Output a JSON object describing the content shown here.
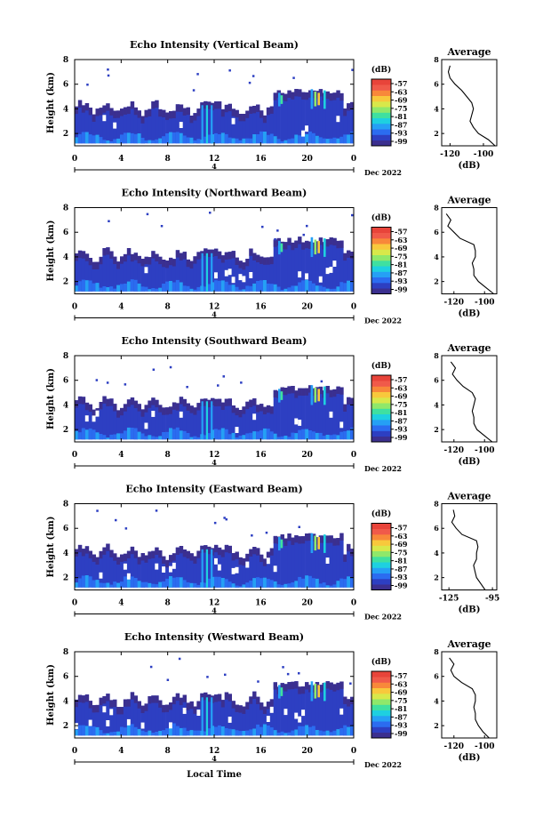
{
  "figure": {
    "xlabel": "Local Time",
    "date_note": "Dec 2022",
    "day_label": "4"
  },
  "colorbar": {
    "unit_label": "(dB)",
    "ticks": [
      "-57",
      "-63",
      "-69",
      "-75",
      "-81",
      "-87",
      "-93",
      "-99"
    ],
    "colors": [
      "#3b2f8f",
      "#2d3fc2",
      "#2b6cf0",
      "#25a0f5",
      "#1ed0e0",
      "#3fe0a0",
      "#8fe86a",
      "#d8e84a",
      "#f8c83c",
      "#f8883a",
      "#f05a4a",
      "#e8443a"
    ]
  },
  "chart_data": [
    {
      "type": "heatmap",
      "title": "Echo Intensity (Vertical Beam)",
      "xlabel": "",
      "ylabel": "Height (km)",
      "xlim": [
        0,
        24
      ],
      "ylim": [
        1,
        8
      ],
      "x_ticks": [
        "0",
        "4",
        "8",
        "12",
        "16",
        "20",
        "0"
      ],
      "y_ticks": [
        "2",
        "4",
        "6",
        "8"
      ],
      "profile": {
        "title": "Average",
        "xlabel": "(dB)",
        "xlim": [
          -125,
          -92
        ],
        "x_ticks": [
          "-120",
          "-100"
        ],
        "heights": [
          1.0,
          1.5,
          2.0,
          2.5,
          3.0,
          3.5,
          4.0,
          4.5,
          5.0,
          5.5,
          6.0,
          6.5,
          7.0,
          7.5
        ],
        "values": [
          -93,
          -97,
          -103,
          -106,
          -108,
          -107,
          -106,
          -107,
          -110,
          -113,
          -117,
          -120,
          -121,
          -120
        ]
      }
    },
    {
      "type": "heatmap",
      "title": "Echo Intensity (Northward Beam)",
      "xlabel": "",
      "ylabel": "Height (km)",
      "xlim": [
        0,
        24
      ],
      "ylim": [
        1,
        8
      ],
      "x_ticks": [
        "0",
        "4",
        "8",
        "12",
        "16",
        "20",
        "0"
      ],
      "y_ticks": [
        "2",
        "4",
        "6",
        "8"
      ],
      "profile": {
        "title": "Average",
        "xlabel": "(dB)",
        "xlim": [
          -128,
          -92
        ],
        "x_ticks": [
          "-120",
          "-100"
        ],
        "heights": [
          1.0,
          1.5,
          2.0,
          2.5,
          3.0,
          3.5,
          4.0,
          4.5,
          5.0,
          5.5,
          6.0,
          6.5,
          7.0,
          7.5
        ],
        "values": [
          -94,
          -99,
          -104,
          -107,
          -107,
          -108,
          -106,
          -106,
          -107,
          -116,
          -120,
          -124,
          -122,
          -125
        ]
      }
    },
    {
      "type": "heatmap",
      "title": "Echo Intensity (Southward Beam)",
      "xlabel": "",
      "ylabel": "Height (km)",
      "xlim": [
        0,
        24
      ],
      "ylim": [
        1,
        8
      ],
      "x_ticks": [
        "0",
        "4",
        "8",
        "12",
        "16",
        "20",
        "0"
      ],
      "y_ticks": [
        "2",
        "4",
        "6",
        "8"
      ],
      "profile": {
        "title": "Average",
        "xlabel": "(dB)",
        "xlim": [
          -128,
          -92
        ],
        "x_ticks": [
          "-120",
          "-100"
        ],
        "heights": [
          1.0,
          1.5,
          2.0,
          2.5,
          3.0,
          3.5,
          4.0,
          4.5,
          5.0,
          5.5,
          6.0,
          6.5,
          7.0,
          7.5
        ],
        "values": [
          -95,
          -100,
          -105,
          -107,
          -107,
          -108,
          -107,
          -106,
          -108,
          -114,
          -118,
          -121,
          -119,
          -122
        ]
      }
    },
    {
      "type": "heatmap",
      "title": "Echo Intensity (Eastward Beam)",
      "xlabel": "",
      "ylabel": "Height (km)",
      "xlim": [
        0,
        24
      ],
      "ylim": [
        1,
        8
      ],
      "x_ticks": [
        "0",
        "4",
        "8",
        "12",
        "16",
        "20",
        "0"
      ],
      "y_ticks": [
        "2",
        "4",
        "6",
        "8"
      ],
      "profile": {
        "title": "Average",
        "xlabel": "(dB)",
        "xlim": [
          -130,
          -92
        ],
        "x_ticks": [
          "-125",
          "-95"
        ],
        "heights": [
          1.0,
          1.5,
          2.0,
          2.5,
          3.0,
          3.5,
          4.0,
          4.5,
          5.0,
          5.5,
          6.0,
          6.5,
          7.0,
          7.5
        ],
        "values": [
          -100,
          -103,
          -106,
          -107,
          -108,
          -106,
          -106,
          -105,
          -106,
          -116,
          -120,
          -123,
          -121,
          -122
        ]
      }
    },
    {
      "type": "heatmap",
      "title": "Echo Intensity (Westward Beam)",
      "xlabel": "Local Time",
      "ylabel": "Height (km)",
      "xlim": [
        0,
        24
      ],
      "ylim": [
        1,
        8
      ],
      "x_ticks": [
        "0",
        "4",
        "8",
        "12",
        "16",
        "20",
        "0"
      ],
      "y_ticks": [
        "2",
        "4",
        "6",
        "8"
      ],
      "profile": {
        "title": "Average",
        "xlabel": "(dB)",
        "xlim": [
          -128,
          -92
        ],
        "x_ticks": [
          "-120",
          "-100"
        ],
        "heights": [
          1.0,
          1.5,
          2.0,
          2.5,
          3.0,
          3.5,
          4.0,
          4.5,
          5.0,
          5.5,
          6.0,
          6.5,
          7.0,
          7.5
        ],
        "values": [
          -97,
          -101,
          -104,
          -106,
          -106,
          -107,
          -106,
          -106,
          -108,
          -115,
          -120,
          -122,
          -120,
          -123
        ]
      }
    }
  ]
}
